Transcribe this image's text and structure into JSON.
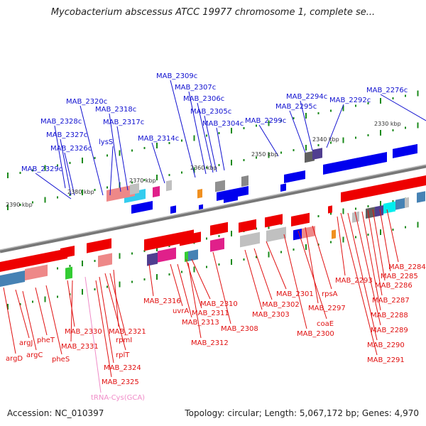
{
  "title": "Mycobacterium abscessus ATCC 19977 chromosome 1, complete se...",
  "footer": {
    "accession": "Accession: NC_010397",
    "summary": "Topology: circular; Length: 5,067,172 bp; Genes: 4,970"
  },
  "colors": {
    "forward_label": "#1010d0",
    "reverse_label": "#e01010",
    "trna_label": "#f08cc8",
    "backbone": "#808080",
    "tick": "#1a8a1a"
  },
  "scale_labels": [
    "2390 kbp",
    "2380 kbp",
    "2370 kbp",
    "2360 kbp",
    "2350 kbp",
    "2340 kbp",
    "2330 kbp"
  ],
  "forward_genes": [
    "MAB_2329c",
    "MAB_2328c",
    "MAB_2327c",
    "MAB_2326c",
    "MAB_2320c",
    "lysS",
    "MAB_2318c",
    "MAB_2317c",
    "MAB_2314c",
    "MAB_2309c",
    "MAB_2307c",
    "MAB_2306c",
    "MAB_2305c",
    "MAB_2304c",
    "MAB_2299c",
    "MAB_2295c",
    "MAB_2294c",
    "MAB_2292c",
    "MAB_2276c"
  ],
  "reverse_genes": [
    "argD",
    "argJ",
    "argC",
    "pheT",
    "pheS",
    "MAB_2330",
    "MAB_2331",
    "MAB_2321",
    "rpmI",
    "rplT",
    "MAB_2324",
    "MAB_2325",
    "tRNA-Cys(GCA)",
    "MAB_2316",
    "uvrA",
    "MAB_2313",
    "MAB_2311",
    "MAB_2310",
    "MAB_2312",
    "MAB_2308",
    "MAB_2303",
    "MAB_2302",
    "MAB_2301",
    "MAB_2300",
    "coaE",
    "MAB_2297",
    "rpsA",
    "MAB_2293",
    "MAB_2291",
    "MAB_2290",
    "MAB_2289",
    "MAB_2288",
    "MAB_2287",
    "MAB_2286",
    "MAB_2285",
    "MAB_2284"
  ]
}
